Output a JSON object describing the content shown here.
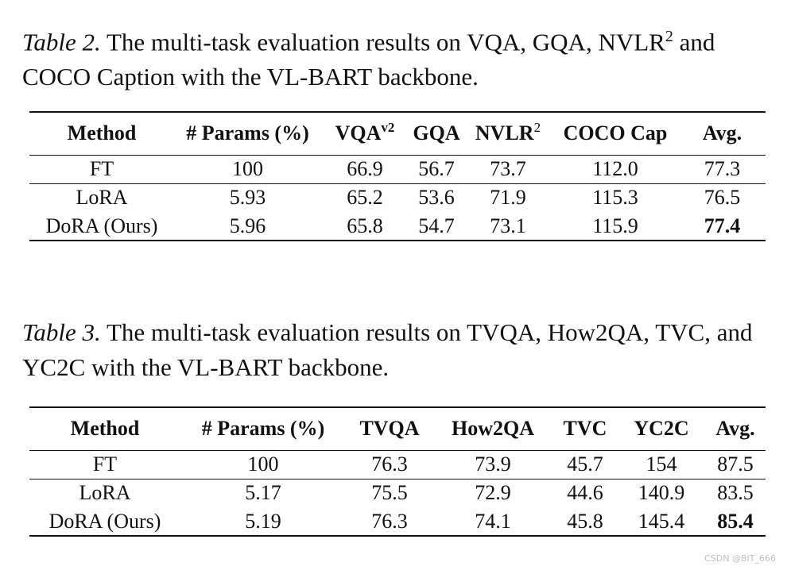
{
  "table2": {
    "caption_label": "Table 2.",
    "caption_text_pre": " The multi-task evaluation results on VQA, GQA, NVLR",
    "caption_sup": "2",
    "caption_text_post": " and COCO Caption with the VL-BART backbone.",
    "headers": {
      "method": "Method",
      "params": "# Params (%)",
      "vqa": "VQA",
      "vqa_sup": "v2",
      "gqa": "GQA",
      "nvlr": "NVLR",
      "nvlr_sup": "2",
      "coco": "COCO Cap",
      "avg": "Avg."
    },
    "rows": [
      {
        "method": "FT",
        "params": "100",
        "vqa": "66.9",
        "gqa": "56.7",
        "nvlr": "73.7",
        "coco": "112.0",
        "avg": "77.3"
      },
      {
        "method": "LoRA",
        "params": "5.93",
        "vqa": "65.2",
        "gqa": "53.6",
        "nvlr": "71.9",
        "coco": "115.3",
        "avg": "76.5"
      },
      {
        "method": "DoRA (Ours)",
        "params": "5.96",
        "vqa": "65.8",
        "gqa": "54.7",
        "nvlr": "73.1",
        "coco": "115.9",
        "avg": "77.4"
      }
    ]
  },
  "table3": {
    "caption_label": "Table 3.",
    "caption_text": " The multi-task evaluation results on TVQA, How2QA, TVC, and YC2C with the VL-BART backbone.",
    "headers": {
      "method": "Method",
      "params": "# Params (%)",
      "tvqa": "TVQA",
      "how2qa": "How2QA",
      "tvc": "TVC",
      "yc2c": "YC2C",
      "avg": "Avg."
    },
    "rows": [
      {
        "method": "FT",
        "params": "100",
        "tvqa": "76.3",
        "how2qa": "73.9",
        "tvc": "45.7",
        "yc2c": "154",
        "avg": "87.5"
      },
      {
        "method": "LoRA",
        "params": "5.17",
        "tvqa": "75.5",
        "how2qa": "72.9",
        "tvc": "44.6",
        "yc2c": "140.9",
        "avg": "83.5"
      },
      {
        "method": "DoRA (Ours)",
        "params": "5.19",
        "tvqa": "76.3",
        "how2qa": "74.1",
        "tvc": "45.8",
        "yc2c": "145.4",
        "avg": "85.4"
      }
    ]
  },
  "watermark": "CSDN @BIT_666"
}
